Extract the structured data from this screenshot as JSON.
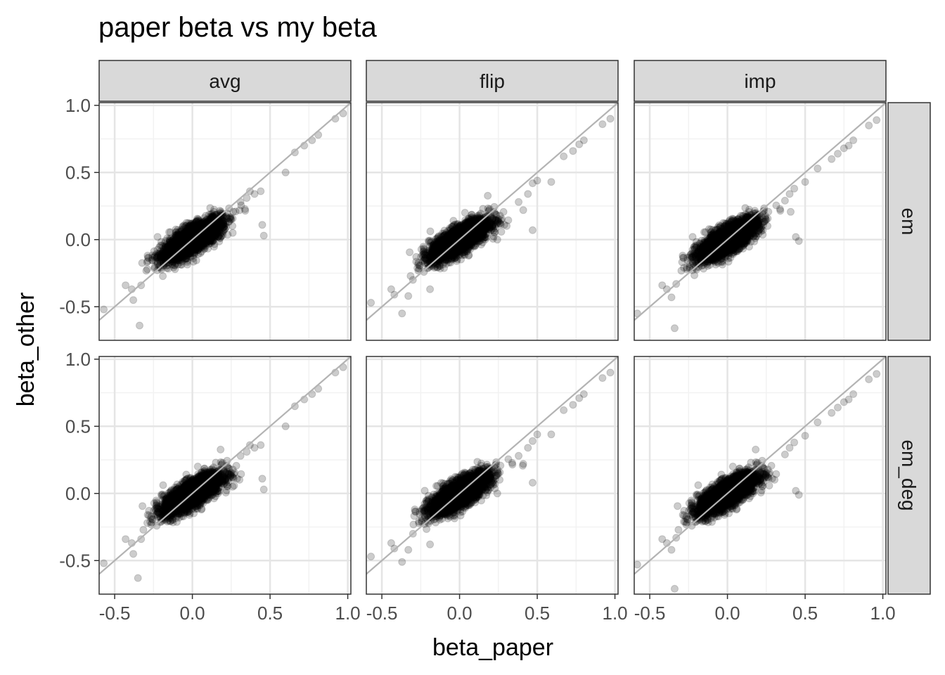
{
  "chart_data": {
    "type": "scatter",
    "title": "paper beta vs my beta",
    "xlabel": "beta_paper",
    "ylabel": "beta_other",
    "facet_cols": [
      "avg",
      "flip",
      "imp"
    ],
    "facet_rows": [
      "em",
      "em_deg"
    ],
    "xlim": [
      -0.6,
      1.02
    ],
    "ylim": [
      -0.75,
      1.02
    ],
    "x_ticks": [
      -0.5,
      0.0,
      0.5,
      1.0
    ],
    "x_tick_labels": [
      "-0.5",
      "0.0",
      "0.5",
      "1.0"
    ],
    "y_ticks": [
      -0.5,
      0.0,
      0.5,
      1.0
    ],
    "y_tick_labels": [
      "-0.5",
      "0.0",
      "0.5",
      "1.0"
    ],
    "reference_line": {
      "slope": 1,
      "intercept": 0,
      "color": "#b3b3b3"
    },
    "point_color": "#000000",
    "point_alpha": 0.2,
    "grid": true,
    "panel_border_color": "#333333",
    "strip_fill": "#d9d9d9",
    "cloud": {
      "n": 2600,
      "x_mean": 0.0,
      "x_sd": 0.095,
      "slope": 0.62,
      "noise_sd": 0.05
    },
    "panels": [
      {
        "col": "avg",
        "row": "em",
        "outliers": [
          [
            -0.57,
            -0.52
          ],
          [
            -0.34,
            -0.64
          ],
          [
            -0.43,
            -0.34
          ],
          [
            -0.39,
            -0.37
          ],
          [
            -0.38,
            -0.45
          ],
          [
            -0.33,
            -0.34
          ],
          [
            -0.29,
            -0.22
          ],
          [
            0.26,
            0.05
          ],
          [
            0.31,
            0.28
          ],
          [
            0.35,
            0.31
          ],
          [
            0.37,
            0.36
          ],
          [
            0.4,
            0.34
          ],
          [
            0.44,
            0.36
          ],
          [
            0.45,
            0.11
          ],
          [
            0.46,
            0.03
          ],
          [
            0.6,
            0.5
          ],
          [
            0.66,
            0.65
          ],
          [
            0.72,
            0.7
          ],
          [
            0.77,
            0.74
          ],
          [
            0.81,
            0.78
          ],
          [
            0.92,
            0.9
          ],
          [
            0.97,
            0.94
          ]
        ]
      },
      {
        "col": "flip",
        "row": "em",
        "outliers": [
          [
            -0.57,
            -0.47
          ],
          [
            -0.44,
            -0.37
          ],
          [
            -0.42,
            -0.41
          ],
          [
            -0.37,
            -0.55
          ],
          [
            -0.33,
            -0.42
          ],
          [
            -0.3,
            -0.3
          ],
          [
            -0.19,
            -0.37
          ],
          [
            0.38,
            0.28
          ],
          [
            0.41,
            0.22
          ],
          [
            0.44,
            0.34
          ],
          [
            0.47,
            0.42
          ],
          [
            0.47,
            0.07
          ],
          [
            0.5,
            0.44
          ],
          [
            0.59,
            0.43
          ],
          [
            0.67,
            0.62
          ],
          [
            0.73,
            0.66
          ],
          [
            0.77,
            0.71
          ],
          [
            0.8,
            0.74
          ],
          [
            0.92,
            0.86
          ],
          [
            0.97,
            0.9
          ]
        ]
      },
      {
        "col": "imp",
        "row": "em",
        "outliers": [
          [
            -0.58,
            -0.55
          ],
          [
            -0.34,
            -0.66
          ],
          [
            -0.42,
            -0.34
          ],
          [
            -0.39,
            -0.37
          ],
          [
            -0.36,
            -0.43
          ],
          [
            -0.33,
            -0.33
          ],
          [
            -0.28,
            -0.21
          ],
          [
            0.37,
            0.29
          ],
          [
            0.4,
            0.34
          ],
          [
            0.43,
            0.38
          ],
          [
            0.44,
            0.02
          ],
          [
            0.46,
            -0.01
          ],
          [
            0.5,
            0.43
          ],
          [
            0.58,
            0.53
          ],
          [
            0.67,
            0.6
          ],
          [
            0.71,
            0.64
          ],
          [
            0.75,
            0.68
          ],
          [
            0.78,
            0.7
          ],
          [
            0.81,
            0.74
          ],
          [
            0.91,
            0.85
          ],
          [
            0.96,
            0.89
          ]
        ]
      },
      {
        "col": "avg",
        "row": "em_deg",
        "outliers": [
          [
            -0.57,
            -0.52
          ],
          [
            -0.35,
            -0.63
          ],
          [
            -0.43,
            -0.34
          ],
          [
            -0.39,
            -0.37
          ],
          [
            -0.38,
            -0.45
          ],
          [
            -0.33,
            -0.34
          ],
          [
            -0.29,
            -0.22
          ],
          [
            0.26,
            0.05
          ],
          [
            0.31,
            0.28
          ],
          [
            0.35,
            0.31
          ],
          [
            0.37,
            0.36
          ],
          [
            0.4,
            0.34
          ],
          [
            0.44,
            0.36
          ],
          [
            0.45,
            0.11
          ],
          [
            0.46,
            0.03
          ],
          [
            0.6,
            0.5
          ],
          [
            0.66,
            0.65
          ],
          [
            0.72,
            0.7
          ],
          [
            0.77,
            0.74
          ],
          [
            0.81,
            0.78
          ],
          [
            0.92,
            0.9
          ],
          [
            0.97,
            0.94
          ]
        ]
      },
      {
        "col": "flip",
        "row": "em_deg",
        "outliers": [
          [
            -0.57,
            -0.47
          ],
          [
            -0.44,
            -0.37
          ],
          [
            -0.42,
            -0.41
          ],
          [
            -0.37,
            -0.51
          ],
          [
            -0.33,
            -0.42
          ],
          [
            -0.3,
            -0.3
          ],
          [
            -0.19,
            -0.38
          ],
          [
            0.38,
            0.28
          ],
          [
            0.41,
            0.22
          ],
          [
            0.44,
            0.34
          ],
          [
            0.47,
            0.39
          ],
          [
            0.47,
            0.08
          ],
          [
            0.5,
            0.44
          ],
          [
            0.59,
            0.44
          ],
          [
            0.67,
            0.62
          ],
          [
            0.73,
            0.66
          ],
          [
            0.77,
            0.71
          ],
          [
            0.8,
            0.74
          ],
          [
            0.92,
            0.86
          ],
          [
            0.97,
            0.9
          ]
        ]
      },
      {
        "col": "imp",
        "row": "em_deg",
        "outliers": [
          [
            -0.58,
            -0.53
          ],
          [
            -0.34,
            -0.71
          ],
          [
            -0.42,
            -0.34
          ],
          [
            -0.39,
            -0.37
          ],
          [
            -0.36,
            -0.42
          ],
          [
            -0.33,
            -0.33
          ],
          [
            -0.28,
            -0.21
          ],
          [
            0.37,
            0.29
          ],
          [
            0.4,
            0.34
          ],
          [
            0.43,
            0.38
          ],
          [
            0.44,
            0.02
          ],
          [
            0.46,
            -0.01
          ],
          [
            0.5,
            0.43
          ],
          [
            0.58,
            0.53
          ],
          [
            0.67,
            0.6
          ],
          [
            0.71,
            0.64
          ],
          [
            0.75,
            0.68
          ],
          [
            0.78,
            0.7
          ],
          [
            0.81,
            0.74
          ],
          [
            0.91,
            0.85
          ],
          [
            0.96,
            0.89
          ]
        ]
      }
    ]
  }
}
